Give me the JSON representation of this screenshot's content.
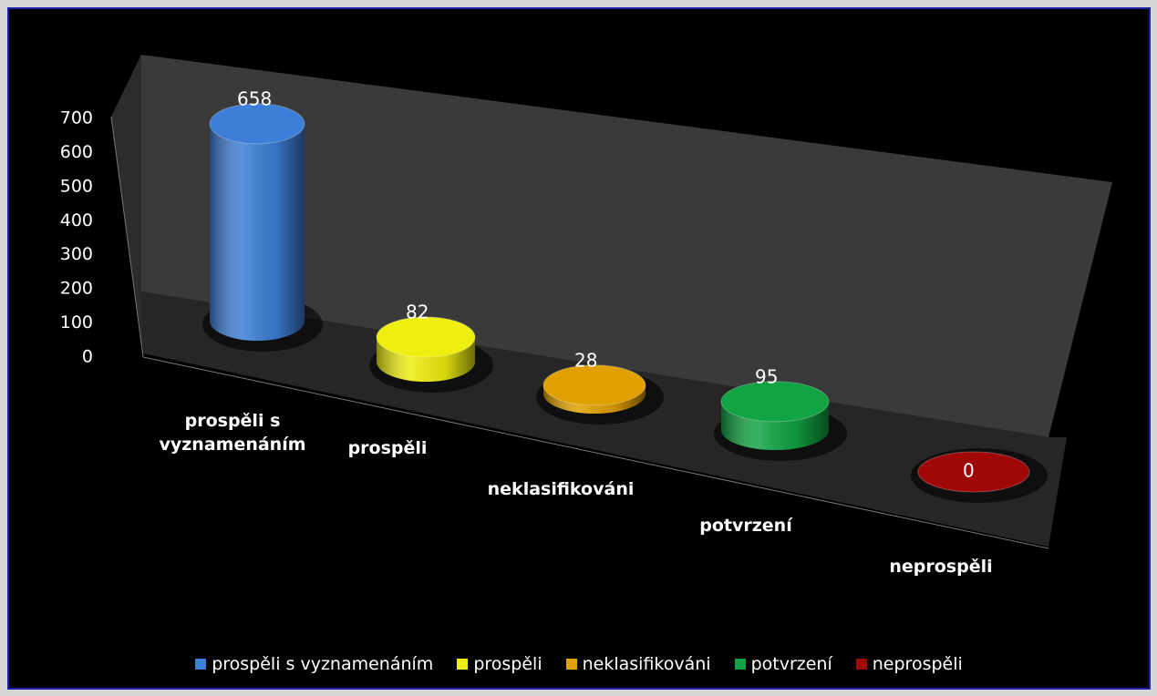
{
  "chart_data": {
    "type": "bar3d",
    "categories": [
      "prospěli s vyznamenáním",
      "prospěli",
      "neklasifikováni",
      "potvrzení",
      "neprospěli"
    ],
    "values": [
      658,
      82,
      28,
      95,
      0
    ],
    "colors": [
      "#3d7fd6",
      "#eeee10",
      "#e0a000",
      "#12a444",
      "#a00808"
    ],
    "ylim": [
      0,
      700
    ],
    "yticks": [
      0,
      100,
      200,
      300,
      400,
      500,
      600,
      700
    ],
    "legend": "bottom"
  }
}
